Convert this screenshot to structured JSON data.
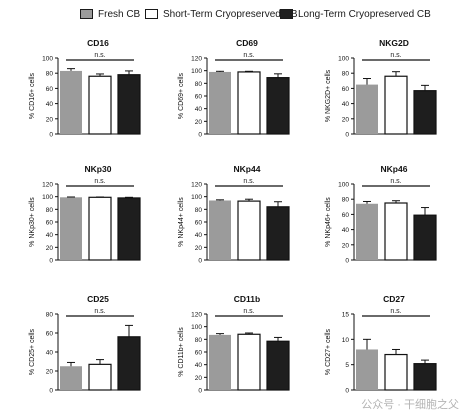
{
  "legend": [
    {
      "label": "Fresh CB",
      "color": "#9b9b9b"
    },
    {
      "label": "Short-Term Cryopreserved CB",
      "color": "#ffffff"
    },
    {
      "label": "Long-Term Cryopreserved CB",
      "color": "#1e1e1e"
    }
  ],
  "watermark": "公众号 · 干细胞之父",
  "chart_data": [
    {
      "type": "bar",
      "title": "CD16",
      "ylabel": "% CD16+ cells",
      "ylim": [
        0,
        100
      ],
      "yticks": [
        0,
        20,
        40,
        60,
        80,
        100
      ],
      "categories": [
        "Fresh CB",
        "Short-Term Cryopreserved CB",
        "Long-Term Cryopreserved CB"
      ],
      "values": [
        83,
        76,
        78
      ],
      "errors": [
        3,
        3,
        5
      ],
      "annotation": "n.s."
    },
    {
      "type": "bar",
      "title": "CD69",
      "ylabel": "% CD69+ cells",
      "ylim": [
        0,
        120
      ],
      "yticks": [
        0,
        20,
        40,
        60,
        80,
        100,
        120
      ],
      "categories": [
        "Fresh CB",
        "Short-Term Cryopreserved CB",
        "Long-Term Cryopreserved CB"
      ],
      "values": [
        98,
        98,
        89
      ],
      "errors": [
        1,
        1,
        6
      ],
      "annotation": "n.s."
    },
    {
      "type": "bar",
      "title": "NKG2D",
      "ylabel": "% NKG2D+ cells",
      "ylim": [
        0,
        100
      ],
      "yticks": [
        0,
        20,
        40,
        60,
        80,
        100
      ],
      "categories": [
        "Fresh CB",
        "Short-Term Cryopreserved CB",
        "Long-Term Cryopreserved CB"
      ],
      "values": [
        65,
        76,
        57
      ],
      "errors": [
        8,
        6,
        7
      ],
      "annotation": "n.s."
    },
    {
      "type": "bar",
      "title": "NKp30",
      "ylabel": "% NKp30+ cells",
      "ylim": [
        0,
        120
      ],
      "yticks": [
        0,
        20,
        40,
        60,
        80,
        100,
        120
      ],
      "categories": [
        "Fresh CB",
        "Short-Term Cryopreserved CB",
        "Long-Term Cryopreserved CB"
      ],
      "values": [
        99,
        99,
        98
      ],
      "errors": [
        0.5,
        0.5,
        1
      ],
      "annotation": "n.s."
    },
    {
      "type": "bar",
      "title": "NKp44",
      "ylabel": "% NKp44+ cells",
      "ylim": [
        0,
        120
      ],
      "yticks": [
        0,
        20,
        40,
        60,
        80,
        100,
        120
      ],
      "categories": [
        "Fresh CB",
        "Short-Term Cryopreserved CB",
        "Long-Term Cryopreserved CB"
      ],
      "values": [
        94,
        93,
        84
      ],
      "errors": [
        1,
        3,
        8
      ],
      "annotation": "n.s."
    },
    {
      "type": "bar",
      "title": "NKp46",
      "ylabel": "% NKp46+ cells",
      "ylim": [
        0,
        100
      ],
      "yticks": [
        0,
        20,
        40,
        60,
        80,
        100
      ],
      "categories": [
        "Fresh CB",
        "Short-Term Cryopreserved CB",
        "Long-Term Cryopreserved CB"
      ],
      "values": [
        74,
        75,
        59
      ],
      "errors": [
        3,
        3,
        10
      ],
      "annotation": "n.s."
    },
    {
      "type": "bar",
      "title": "CD25",
      "ylabel": "% CD25+ cells",
      "ylim": [
        0,
        80
      ],
      "yticks": [
        0,
        20,
        40,
        60,
        80
      ],
      "categories": [
        "Fresh CB",
        "Short-Term Cryopreserved CB",
        "Long-Term Cryopreserved CB"
      ],
      "values": [
        25,
        27,
        56
      ],
      "errors": [
        4,
        5,
        12
      ],
      "annotation": "n.s."
    },
    {
      "type": "bar",
      "title": "CD11b",
      "ylabel": "% CD11b+ cells",
      "ylim": [
        0,
        120
      ],
      "yticks": [
        0,
        20,
        40,
        60,
        80,
        100,
        120
      ],
      "categories": [
        "Fresh CB",
        "Short-Term Cryopreserved CB",
        "Long-Term Cryopreserved CB"
      ],
      "values": [
        87,
        88,
        77
      ],
      "errors": [
        2,
        2,
        6
      ],
      "annotation": "n.s."
    },
    {
      "type": "bar",
      "title": "CD27",
      "ylabel": "% CD27+ cells",
      "ylim": [
        0,
        15
      ],
      "yticks": [
        0,
        5,
        10,
        15
      ],
      "categories": [
        "Fresh CB",
        "Short-Term Cryopreserved CB",
        "Long-Term Cryopreserved CB"
      ],
      "values": [
        8,
        7,
        5.2
      ],
      "errors": [
        2,
        1,
        0.7
      ],
      "annotation": "n.s."
    }
  ]
}
